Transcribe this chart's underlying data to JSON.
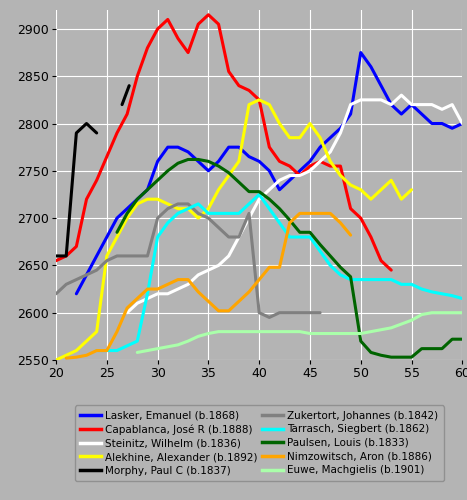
{
  "xlim": [
    20,
    60
  ],
  "ylim": [
    2550,
    2920
  ],
  "xticks": [
    20,
    25,
    30,
    35,
    40,
    45,
    50,
    55,
    60
  ],
  "yticks": [
    2550,
    2600,
    2650,
    2700,
    2750,
    2800,
    2850,
    2900
  ],
  "background_color": "#b4b4b4",
  "grid_color": "#ffffff",
  "legend_order": [
    "Lasker, Emanuel (b.1868)",
    "Capablanca, José R (b.1888)",
    "Steinitz, Wilhelm (b.1836)",
    "Alekhine, Alexander (b.1892)",
    "Morphy, Paul C (b.1837)",
    "Zukertort, Johannes (b.1842)",
    "Tarrasch, Siegbert (b.1862)",
    "Paulsen, Louis (b.1833)",
    "Nimzowitsch, Aron (b.1886)",
    "Euwe, Machgielis (b.1901)"
  ],
  "players": [
    {
      "name": "Lasker, Emanuel (b.1868)",
      "color": "#0000ff",
      "x": [
        22,
        23,
        24,
        25,
        26,
        27,
        28,
        29,
        30,
        31,
        32,
        33,
        34,
        35,
        36,
        37,
        38,
        39,
        40,
        41,
        42,
        43,
        44,
        45,
        46,
        47,
        48,
        49,
        50,
        51,
        52,
        53,
        54,
        55,
        56,
        57,
        58,
        59,
        60
      ],
      "y": [
        2620,
        2640,
        2660,
        2680,
        2700,
        2710,
        2720,
        2730,
        2760,
        2775,
        2775,
        2770,
        2760,
        2750,
        2760,
        2775,
        2775,
        2765,
        2760,
        2750,
        2730,
        2740,
        2750,
        2760,
        2775,
        2785,
        2795,
        2810,
        2875,
        2860,
        2840,
        2820,
        2810,
        2820,
        2810,
        2800,
        2800,
        2795,
        2800
      ]
    },
    {
      "name": "Capablanca, José R (b.1888)",
      "color": "#ff0000",
      "x": [
        20,
        21,
        22,
        23,
        24,
        25,
        26,
        27,
        28,
        29,
        30,
        31,
        32,
        33,
        34,
        35,
        36,
        37,
        38,
        39,
        40,
        41,
        42,
        43,
        44,
        45,
        46,
        47,
        48,
        49,
        50,
        51,
        52,
        53
      ],
      "y": [
        2655,
        2660,
        2670,
        2720,
        2740,
        2765,
        2790,
        2810,
        2850,
        2880,
        2900,
        2910,
        2890,
        2875,
        2905,
        2915,
        2905,
        2855,
        2840,
        2835,
        2825,
        2775,
        2760,
        2755,
        2745,
        2755,
        2760,
        2755,
        2755,
        2710,
        2700,
        2680,
        2655,
        2645
      ]
    },
    {
      "name": "Steinitz, Wilhelm (b.1836)",
      "color": "#ffffff",
      "x": [
        27,
        28,
        29,
        30,
        31,
        32,
        33,
        34,
        35,
        36,
        37,
        38,
        39,
        40,
        41,
        42,
        43,
        44,
        45,
        46,
        47,
        48,
        49,
        50,
        51,
        52,
        53,
        54,
        55,
        56,
        57,
        58,
        59,
        60
      ],
      "y": [
        2600,
        2610,
        2615,
        2620,
        2620,
        2625,
        2630,
        2640,
        2645,
        2650,
        2660,
        2680,
        2700,
        2720,
        2730,
        2740,
        2745,
        2745,
        2750,
        2760,
        2770,
        2790,
        2820,
        2825,
        2825,
        2825,
        2820,
        2830,
        2820,
        2820,
        2820,
        2815,
        2820,
        2800
      ]
    },
    {
      "name": "Alekhine, Alexander (b.1892)",
      "color": "#ffff00",
      "x": [
        20,
        21,
        22,
        23,
        24,
        25,
        26,
        27,
        28,
        29,
        30,
        31,
        32,
        33,
        34,
        35,
        36,
        37,
        38,
        39,
        40,
        41,
        42,
        43,
        44,
        45,
        46,
        47,
        48,
        49,
        50,
        51,
        52,
        53,
        54,
        55
      ],
      "y": [
        2550,
        2555,
        2560,
        2570,
        2580,
        2660,
        2680,
        2700,
        2715,
        2720,
        2720,
        2715,
        2710,
        2710,
        2700,
        2710,
        2730,
        2745,
        2760,
        2820,
        2825,
        2820,
        2800,
        2785,
        2785,
        2800,
        2785,
        2760,
        2745,
        2735,
        2730,
        2720,
        2730,
        2740,
        2720,
        2730
      ]
    },
    {
      "name": "Morphy, Paul C (b.1837)",
      "color": "#000000",
      "segments": [
        {
          "x": [
            20,
            21,
            22,
            23,
            24
          ],
          "y": [
            2660,
            2660,
            2790,
            2800,
            2790
          ]
        },
        {
          "x": [
            26.5,
            27.2
          ],
          "y": [
            2820,
            2840
          ]
        }
      ]
    },
    {
      "name": "Zukertort, Johannes (b.1842)",
      "color": "#808080",
      "x": [
        20,
        21,
        22,
        23,
        24,
        25,
        26,
        27,
        28,
        29,
        30,
        31,
        32,
        33,
        34,
        35,
        36,
        37,
        38,
        39,
        40,
        41,
        42,
        43,
        44,
        45,
        46
      ],
      "y": [
        2620,
        2630,
        2635,
        2640,
        2645,
        2655,
        2660,
        2660,
        2660,
        2660,
        2700,
        2710,
        2715,
        2715,
        2705,
        2700,
        2690,
        2680,
        2680,
        2705,
        2600,
        2595,
        2600,
        2600,
        2600,
        2600,
        2600
      ]
    },
    {
      "name": "Tarrasch, Siegbert (b.1862)",
      "color": "#00ffff",
      "x": [
        24,
        25,
        26,
        27,
        28,
        29,
        30,
        31,
        32,
        33,
        34,
        35,
        36,
        37,
        38,
        39,
        40,
        41,
        42,
        43,
        44,
        45,
        46,
        47,
        48,
        49,
        50,
        51,
        52,
        53,
        54,
        55,
        56,
        57,
        58,
        59,
        60
      ],
      "y": [
        2560,
        2560,
        2560,
        2565,
        2570,
        2620,
        2680,
        2695,
        2705,
        2710,
        2715,
        2705,
        2705,
        2705,
        2705,
        2715,
        2725,
        2710,
        2695,
        2680,
        2680,
        2680,
        2665,
        2650,
        2640,
        2635,
        2635,
        2635,
        2635,
        2635,
        2630,
        2630,
        2625,
        2622,
        2620,
        2618,
        2615
      ]
    },
    {
      "name": "Paulsen, Louis (b.1833)",
      "color": "#006400",
      "x": [
        26,
        27,
        28,
        29,
        30,
        31,
        32,
        33,
        34,
        35,
        36,
        37,
        38,
        39,
        40,
        41,
        42,
        43,
        44,
        45,
        46,
        47,
        48,
        49,
        50,
        51,
        52,
        53,
        54,
        55,
        56,
        57,
        58,
        59,
        60
      ],
      "y": [
        2685,
        2705,
        2720,
        2730,
        2740,
        2750,
        2758,
        2762,
        2762,
        2760,
        2755,
        2748,
        2738,
        2728,
        2728,
        2720,
        2710,
        2698,
        2685,
        2685,
        2672,
        2660,
        2648,
        2638,
        2570,
        2558,
        2555,
        2553,
        2553,
        2553,
        2562,
        2562,
        2562,
        2572,
        2572
      ]
    },
    {
      "name": "Nimzowitsch, Aron (b.1886)",
      "color": "#ffa500",
      "x": [
        21,
        22,
        23,
        24,
        25,
        26,
        27,
        28,
        29,
        30,
        31,
        32,
        33,
        34,
        35,
        36,
        37,
        38,
        39,
        40,
        41,
        42,
        43,
        44,
        45,
        46,
        47,
        48,
        49
      ],
      "y": [
        2552,
        2553,
        2555,
        2560,
        2560,
        2580,
        2605,
        2615,
        2625,
        2625,
        2630,
        2635,
        2635,
        2622,
        2612,
        2602,
        2602,
        2612,
        2622,
        2635,
        2648,
        2648,
        2695,
        2705,
        2705,
        2705,
        2705,
        2695,
        2682
      ]
    },
    {
      "name": "Euwe, Machgielis (b.1901)",
      "color": "#aaffaa",
      "x": [
        28,
        29,
        30,
        31,
        32,
        33,
        34,
        35,
        36,
        37,
        38,
        39,
        40,
        41,
        42,
        43,
        44,
        45,
        46,
        47,
        48,
        49,
        50,
        51,
        52,
        53,
        54,
        55,
        56,
        57,
        58,
        59,
        60
      ],
      "y": [
        2558,
        2560,
        2562,
        2564,
        2566,
        2570,
        2575,
        2578,
        2580,
        2580,
        2580,
        2580,
        2580,
        2580,
        2580,
        2580,
        2580,
        2578,
        2578,
        2578,
        2578,
        2578,
        2578,
        2580,
        2582,
        2584,
        2588,
        2592,
        2598,
        2600,
        2600,
        2600,
        2600
      ]
    }
  ]
}
